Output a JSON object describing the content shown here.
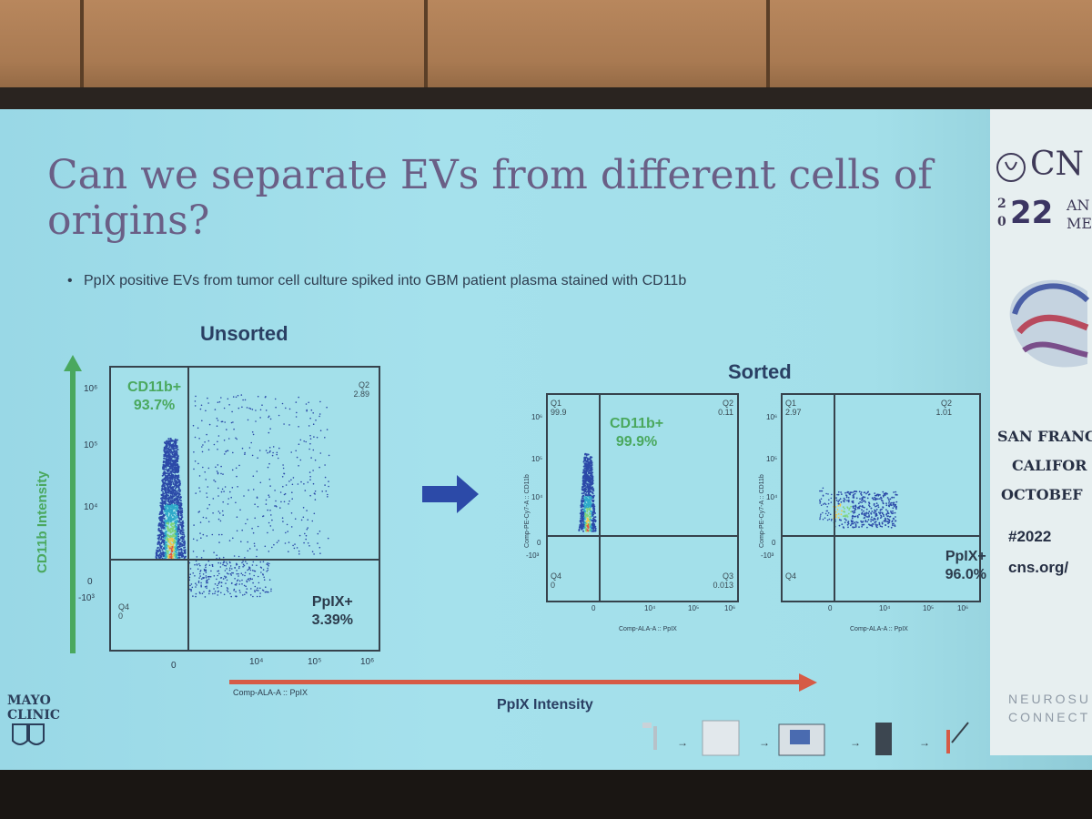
{
  "slide": {
    "title": "Can we separate EVs from different cells of origins?",
    "bullet": "PpIX positive EVs from tumor cell culture spiked into GBM patient plasma stained with CD11b"
  },
  "unsorted": {
    "heading": "Unsorted",
    "y_axis_arrow_label": "CD11b Intensity",
    "x_axis_arrow_label": "PpIX Intensity",
    "x_axis_title": "Comp-ALA-A :: PpIX",
    "q1_label": "CD11b+",
    "q1_value": "93.7%",
    "q2_label": "Q2",
    "q2_value": "2.89",
    "q3_label": "PpIX+",
    "q3_value": "3.39%",
    "q4_label": "Q4",
    "q4_value": "0",
    "y_ticks": [
      "10⁶",
      "10⁵",
      "10⁴",
      "0",
      "-10³"
    ],
    "x_ticks": [
      "0",
      "10⁴",
      "10⁵",
      "10⁶"
    ]
  },
  "sorted": {
    "heading": "Sorted",
    "left": {
      "y_axis_title": "Comp-PE-Cy7-A :: CD11b",
      "x_axis_title": "Comp-ALA-A :: PpIX",
      "q1": "Q1",
      "q1_val": "99.9",
      "q2": "Q2",
      "q2_val": "0.11",
      "q3": "Q3",
      "q3_val": "0.013",
      "q4": "Q4",
      "q4_val": "0",
      "label": "CD11b+",
      "label_value": "99.9%",
      "y_ticks": [
        "10⁶",
        "10⁵",
        "10⁴",
        "0",
        "-10³"
      ],
      "x_ticks": [
        "0",
        "10⁴",
        "10⁵",
        "10⁶"
      ]
    },
    "right": {
      "y_axis_title": "Comp-PE-Cy7-A :: CD11b",
      "x_axis_title": "Comp-ALA-A :: PpIX",
      "q1": "Q1",
      "q1_val": "2.97",
      "q2": "Q2",
      "q2_val": "1.01",
      "q4": "Q4",
      "label": "PpIX+",
      "label_value": "96.0%",
      "y_ticks": [
        "10⁶",
        "10⁵",
        "10⁴",
        "0",
        "-10³"
      ],
      "x_ticks": [
        "0",
        "10⁴",
        "10⁵",
        "10⁶"
      ]
    }
  },
  "sidebar": {
    "brand": "CN",
    "year_top": "2",
    "year_bottom": "0",
    "year_big": "22",
    "an": "AN",
    "me": "ME",
    "line1": "SAN FRANC",
    "line2": "CALIFOR",
    "line3": "OCTOBEF",
    "hashtag": "#2022",
    "site": "cns.org/",
    "neuro1": "NEUROSU",
    "neuro2": "CONNECT"
  },
  "footer": {
    "mayo1": "MAYO",
    "mayo2": "CLINIC"
  },
  "colors": {
    "gate": "#36424c",
    "green": "#4aa85e",
    "arrow_blue": "#2c4aa8",
    "arrow_red": "#d65b46"
  }
}
